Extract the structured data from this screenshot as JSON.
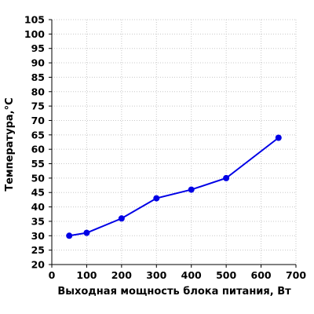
{
  "chart_data": {
    "type": "line",
    "title": "",
    "xlabel": "Выходная мощность блока питания, Вт",
    "ylabel": "Температура,°C",
    "xlim": [
      0,
      700
    ],
    "ylim": [
      20,
      105
    ],
    "x_ticks": [
      0,
      100,
      200,
      300,
      400,
      500,
      600,
      700
    ],
    "y_ticks": [
      20,
      25,
      30,
      35,
      40,
      45,
      50,
      55,
      60,
      65,
      70,
      75,
      80,
      85,
      90,
      95,
      100,
      105
    ],
    "grid": true,
    "legend": "none",
    "series": [
      {
        "color": "#0000e6",
        "x": [
          50,
          100,
          200,
          300,
          400,
          500,
          650
        ],
        "y": [
          30,
          31,
          36,
          43,
          46,
          50,
          64
        ]
      }
    ]
  }
}
